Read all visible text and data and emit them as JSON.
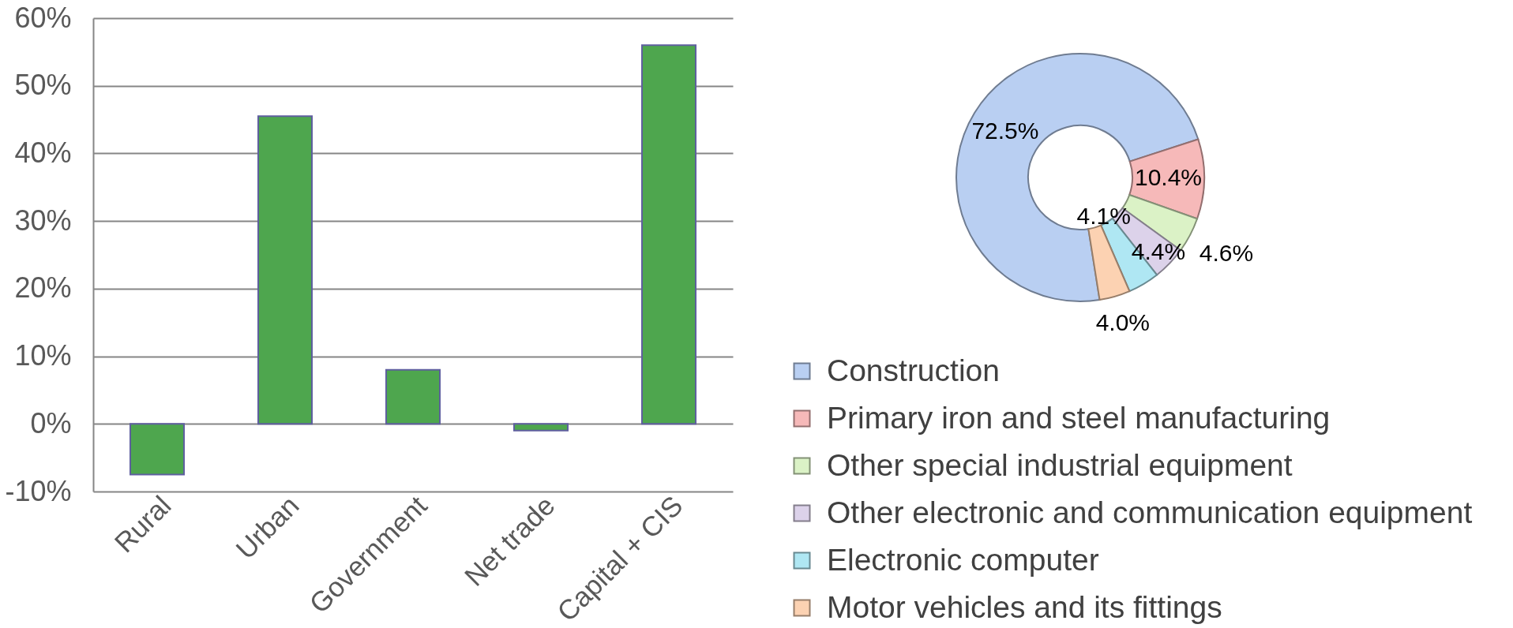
{
  "chart_data": [
    {
      "type": "bar",
      "categories": [
        "Rural",
        "Urban",
        "Government",
        "Net trade",
        "Capital + CIS"
      ],
      "values": [
        -7.5,
        45.5,
        8,
        -1,
        56
      ],
      "color": "#4ea64e",
      "ylim": [
        -10,
        60
      ],
      "yticks": [
        {
          "value": -10,
          "label": "-10%"
        },
        {
          "value": 0,
          "label": "0%"
        },
        {
          "value": 10,
          "label": "10%"
        },
        {
          "value": 20,
          "label": "20%"
        },
        {
          "value": 30,
          "label": "30%"
        },
        {
          "value": 40,
          "label": "40%"
        },
        {
          "value": 50,
          "label": "50%"
        },
        {
          "value": 60,
          "label": "60%"
        }
      ],
      "grid": "y"
    },
    {
      "type": "donut",
      "categories": [
        "Construction",
        "Primary iron and steel manufacturing",
        "Other special industrial equipment",
        "Other electronic and communication equipment",
        "Electronic computer",
        "Motor vehicles and its fittings"
      ],
      "values": [
        72.5,
        10.4,
        4.6,
        4.4,
        4.1,
        4.0
      ],
      "colors": [
        "#b9cff2",
        "#f6b9b9",
        "#dbf2c6",
        "#dcd2ea",
        "#afe7f3",
        "#fcd2b2"
      ],
      "value_labels": [
        "72.5%",
        "10.4%",
        "4.6%",
        "4.4%",
        "4.1%",
        "4.0%"
      ],
      "legend": "bottom"
    }
  ]
}
